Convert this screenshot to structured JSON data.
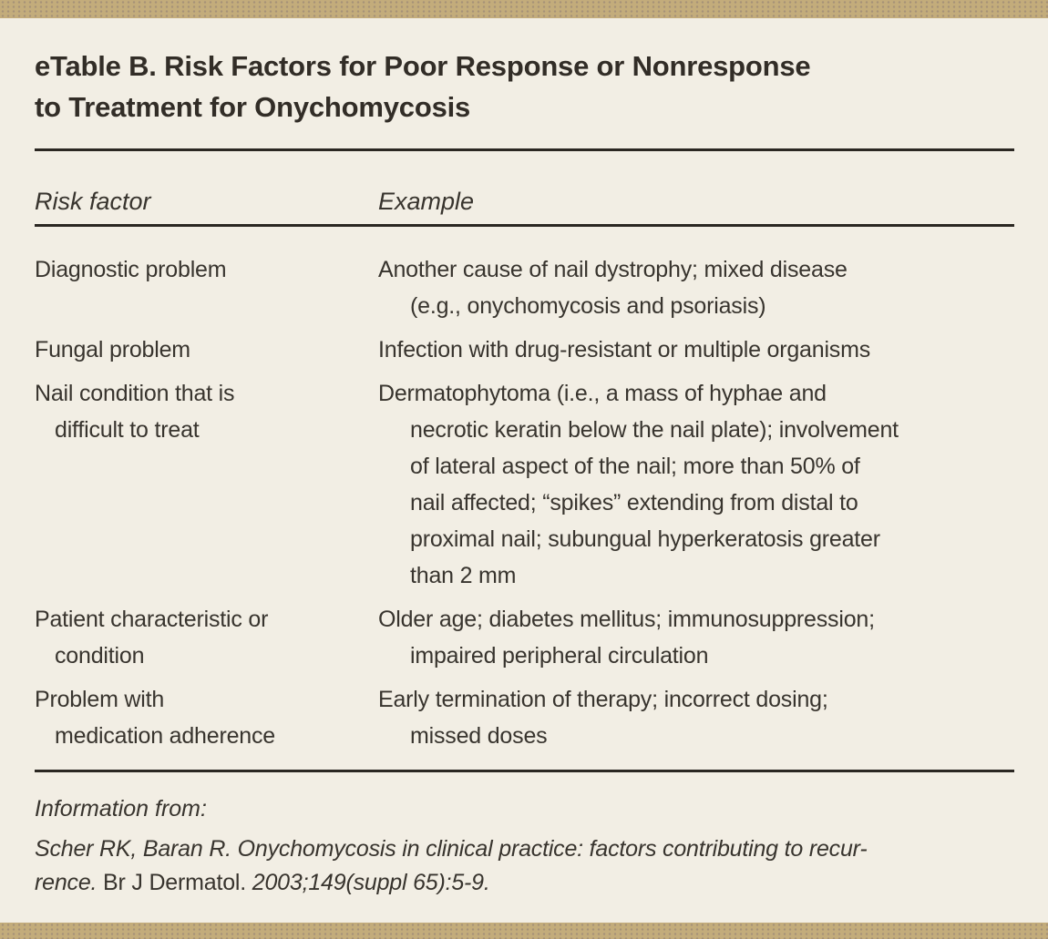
{
  "page": {
    "title": "eTable B. Risk Factors for Poor Response or Nonresponse\nto Treatment for Onychomycosis"
  },
  "table": {
    "columns": [
      "Risk factor",
      "Example"
    ],
    "rows": [
      {
        "risk_factor": [
          "Diagnostic problem"
        ],
        "example": [
          "Another cause of nail dystrophy; mixed disease",
          "(e.g., onychomycosis and psoriasis)"
        ]
      },
      {
        "risk_factor": [
          "Fungal problem"
        ],
        "example": [
          "Infection with drug-resistant or multiple organisms"
        ]
      },
      {
        "risk_factor": [
          "Nail condition that is",
          "difficult to treat"
        ],
        "example": [
          "Dermatophytoma (i.e., a mass of hyphae and",
          "necrotic keratin below the nail plate); involvement",
          "of lateral aspect of the nail; more than 50% of",
          "nail affected; “spikes” extending from distal to",
          "proximal nail; subungual hyperkeratosis greater",
          "than 2 mm"
        ]
      },
      {
        "risk_factor": [
          "Patient characteristic or",
          "condition"
        ],
        "example": [
          "Older age; diabetes mellitus; immunosuppression;",
          "impaired peripheral circulation"
        ]
      },
      {
        "risk_factor": [
          "Problem with",
          "medication adherence"
        ],
        "example": [
          "Early termination of therapy; incorrect dosing;",
          "missed doses"
        ]
      }
    ]
  },
  "source": {
    "label": "Information from:",
    "citation_line1": "Scher RK, Baran R. Onychomycosis in clinical practice: factors contributing to recur-",
    "citation_line2_italic1": "rence.",
    "citation_line2_upright": "Br J Dermatol.",
    "citation_line2_italic2": "2003;149(suppl 65):5-9."
  },
  "colors": {
    "bar_tan": "#c3ac7b",
    "background": "#f2eee4",
    "text": "#38342e",
    "title_text": "#322d27",
    "rule": "#2b2722"
  }
}
